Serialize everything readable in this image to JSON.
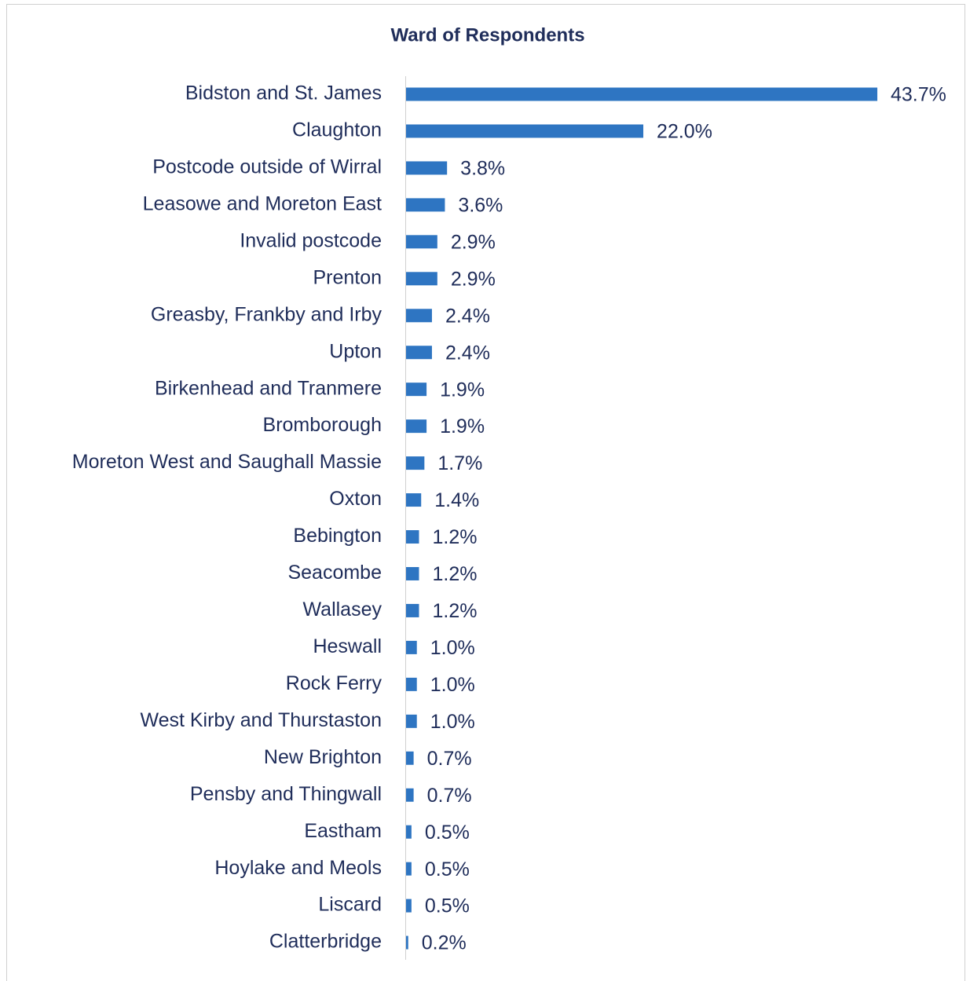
{
  "chart_data": {
    "type": "bar",
    "orientation": "horizontal",
    "title": "Ward of Respondents",
    "categories": [
      "Bidston and St. James",
      "Claughton",
      "Postcode outside of Wirral",
      "Leasowe and Moreton East",
      "Invalid postcode",
      "Prenton",
      "Greasby, Frankby and Irby",
      "Upton",
      "Birkenhead and Tranmere",
      "Bromborough",
      "Moreton West and Saughall Massie",
      "Oxton",
      "Bebington",
      "Seacombe",
      "Wallasey",
      "Heswall",
      "Rock Ferry",
      "West Kirby and Thurstaston",
      "New Brighton",
      "Pensby and Thingwall",
      "Eastham",
      "Hoylake and Meols",
      "Liscard",
      "Clatterbridge"
    ],
    "values": [
      43.7,
      22.0,
      3.8,
      3.6,
      2.9,
      2.9,
      2.4,
      2.4,
      1.9,
      1.9,
      1.7,
      1.4,
      1.2,
      1.2,
      1.2,
      1.0,
      1.0,
      1.0,
      0.7,
      0.7,
      0.5,
      0.5,
      0.5,
      0.2
    ],
    "value_labels": [
      "43.7%",
      "22.0%",
      "3.8%",
      "3.6%",
      "2.9%",
      "2.9%",
      "2.4%",
      "2.4%",
      "1.9%",
      "1.9%",
      "1.7%",
      "1.4%",
      "1.2%",
      "1.2%",
      "1.2%",
      "1.0%",
      "1.0%",
      "1.0%",
      "0.7%",
      "0.7%",
      "0.5%",
      "0.5%",
      "0.5%",
      "0.2%"
    ],
    "color": "#2e75c2"
  }
}
